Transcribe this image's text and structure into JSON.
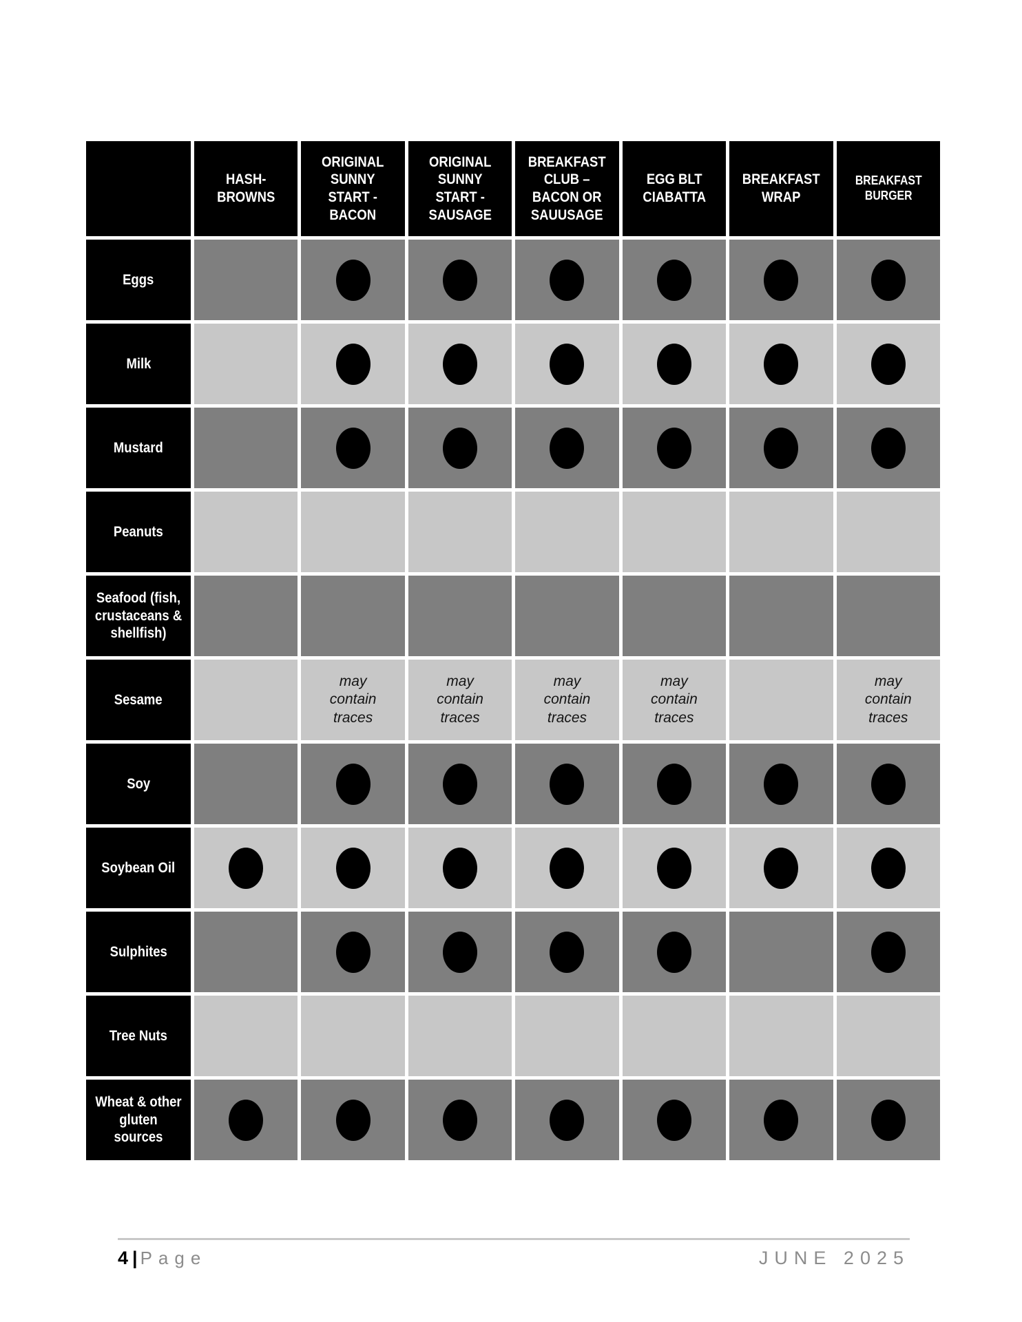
{
  "table": {
    "columns": [
      "HASH-BROWNS",
      "ORIGINAL SUNNY START - BACON",
      "ORIGINAL SUNNY START - SAUSAGE",
      "BREAKFAST CLUB – BACON OR SAUUSAGE",
      "EGG BLT CIABATTA",
      "BREAKFAST WRAP",
      "BREAKFAST BURGER"
    ],
    "traces_label": "may contain traces",
    "dot_meaning": "contains allergen",
    "rows": [
      {
        "allergen": "Eggs",
        "cells": [
          "",
          "dot",
          "dot",
          "dot",
          "dot",
          "dot",
          "dot"
        ]
      },
      {
        "allergen": "Milk",
        "cells": [
          "",
          "dot",
          "dot",
          "dot",
          "dot",
          "dot",
          "dot"
        ]
      },
      {
        "allergen": "Mustard",
        "cells": [
          "",
          "dot",
          "dot",
          "dot",
          "dot",
          "dot",
          "dot"
        ]
      },
      {
        "allergen": "Peanuts",
        "cells": [
          "",
          "",
          "",
          "",
          "",
          "",
          ""
        ]
      },
      {
        "allergen": "Seafood (fish, crustaceans & shellfish)",
        "cells": [
          "",
          "",
          "",
          "",
          "",
          "",
          ""
        ]
      },
      {
        "allergen": "Sesame",
        "cells": [
          "",
          "traces",
          "traces",
          "traces",
          "traces",
          "",
          "traces"
        ]
      },
      {
        "allergen": "Soy",
        "cells": [
          "",
          "dot",
          "dot",
          "dot",
          "dot",
          "dot",
          "dot"
        ]
      },
      {
        "allergen": "Soybean Oil",
        "cells": [
          "dot",
          "dot",
          "dot",
          "dot",
          "dot",
          "dot",
          "dot"
        ]
      },
      {
        "allergen": "Sulphites",
        "cells": [
          "",
          "dot",
          "dot",
          "dot",
          "dot",
          "",
          "dot"
        ]
      },
      {
        "allergen": "Tree Nuts",
        "cells": [
          "",
          "",
          "",
          "",
          "",
          "",
          ""
        ]
      },
      {
        "allergen": "Wheat & other gluten sources",
        "cells": [
          "dot",
          "dot",
          "dot",
          "dot",
          "dot",
          "dot",
          "dot"
        ]
      }
    ]
  },
  "footer": {
    "page_number": "4",
    "separator": "|",
    "page_label": "Page",
    "date": "JUNE 2025"
  },
  "colors": {
    "header_bg": "#000000",
    "header_text": "#ffffff",
    "dark_cell": "#7f7f7f",
    "light_cell": "#c7c7c7",
    "dot": "#000000",
    "footer_text_gray": "#8c8c8c",
    "footer_rule": "#c8c8c8"
  }
}
